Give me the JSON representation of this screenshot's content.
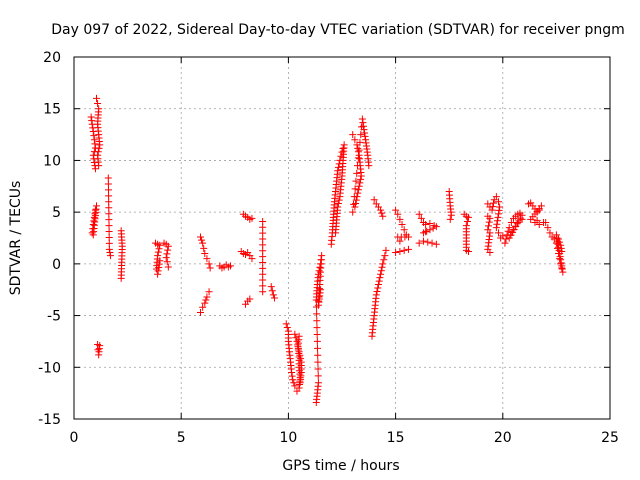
{
  "chart_data": {
    "type": "scatter",
    "title": "Day 097 of 2022, Sidereal Day-to-day VTEC variation (SDTVAR) for receiver pngm",
    "xlabel": "GPS time / hours",
    "ylabel": "SDTVAR / TECUs",
    "xlim": [
      0,
      25
    ],
    "ylim": [
      -15,
      20
    ],
    "xticks": [
      0,
      5,
      10,
      15,
      20,
      25
    ],
    "yticks": [
      -15,
      -10,
      -5,
      0,
      5,
      10,
      15,
      20
    ],
    "xtick_labels": [
      "0",
      "5",
      "10",
      "15",
      "20",
      "25"
    ],
    "ytick_labels": [
      "-15",
      "-10",
      "-5",
      "0",
      "5",
      "10",
      "15",
      "20"
    ],
    "grid": true,
    "marker": "+",
    "marker_color": "#ff0000",
    "series": [
      {
        "name": "SDTVAR",
        "segments": [
          [
            [
              0.8,
              14.2
            ],
            [
              0.85,
              13.5
            ],
            [
              0.9,
              12.8
            ],
            [
              0.95,
              12.0
            ],
            [
              1.0,
              11.2
            ],
            [
              0.9,
              10.5
            ],
            [
              0.95,
              9.8
            ],
            [
              1.0,
              9.2
            ]
          ],
          [
            [
              1.05,
              16.0
            ],
            [
              1.1,
              15.5
            ],
            [
              1.15,
              15.0
            ],
            [
              1.1,
              13.5
            ],
            [
              1.15,
              12.5
            ],
            [
              1.2,
              11.5
            ],
            [
              1.1,
              10.5
            ],
            [
              1.15,
              9.5
            ]
          ],
          [
            [
              0.85,
              3.0
            ],
            [
              0.9,
              3.8
            ],
            [
              0.95,
              4.5
            ],
            [
              1.0,
              5.2
            ],
            [
              1.05,
              5.6
            ],
            [
              0.9,
              2.8
            ]
          ],
          [
            [
              1.1,
              -7.8
            ],
            [
              1.12,
              -8.3
            ],
            [
              1.15,
              -8.8
            ],
            [
              1.2,
              -7.9
            ]
          ],
          [
            [
              1.6,
              8.3
            ],
            [
              1.65,
              1.4
            ],
            [
              1.7,
              0.8
            ]
          ],
          [
            [
              2.2,
              3.2
            ],
            [
              2.25,
              1.7
            ],
            [
              2.2,
              -1.4
            ]
          ],
          [
            [
              3.8,
              2.0
            ],
            [
              3.9,
              1.9
            ],
            [
              4.0,
              1.8
            ],
            [
              3.9,
              0.8
            ],
            [
              3.85,
              -0.5
            ],
            [
              3.9,
              -1.0
            ],
            [
              4.0,
              0.3
            ]
          ],
          [
            [
              4.2,
              2.0
            ],
            [
              4.3,
              1.9
            ],
            [
              4.4,
              1.7
            ],
            [
              4.3,
              0.6
            ],
            [
              4.35,
              0.2
            ],
            [
              4.4,
              -0.3
            ]
          ],
          [
            [
              5.9,
              2.6
            ],
            [
              6.0,
              2.0
            ],
            [
              6.05,
              1.5
            ],
            [
              6.1,
              1.0
            ],
            [
              6.2,
              0.5
            ],
            [
              6.3,
              0.0
            ],
            [
              6.35,
              -0.4
            ]
          ],
          [
            [
              5.9,
              -4.7
            ],
            [
              6.0,
              -4.2
            ],
            [
              6.1,
              -3.8
            ],
            [
              6.2,
              -3.2
            ],
            [
              6.3,
              -2.7
            ]
          ],
          [
            [
              6.8,
              -0.2
            ],
            [
              6.9,
              -0.4
            ],
            [
              7.0,
              -0.3
            ],
            [
              7.1,
              -0.1
            ],
            [
              7.2,
              -0.3
            ],
            [
              7.3,
              -0.2
            ]
          ],
          [
            [
              7.8,
              1.2
            ],
            [
              7.9,
              1.0
            ],
            [
              8.0,
              0.9
            ],
            [
              8.1,
              1.1
            ],
            [
              8.2,
              0.8
            ],
            [
              8.3,
              0.5
            ]
          ],
          [
            [
              7.9,
              4.8
            ],
            [
              8.0,
              4.6
            ],
            [
              8.1,
              4.5
            ],
            [
              8.2,
              4.3
            ],
            [
              8.3,
              4.4
            ]
          ],
          [
            [
              8.0,
              -3.9
            ],
            [
              8.1,
              -3.6
            ],
            [
              8.2,
              -3.4
            ]
          ],
          [
            [
              8.8,
              4.1
            ],
            [
              8.8,
              -2.7
            ]
          ],
          [
            [
              9.2,
              -2.2
            ],
            [
              9.25,
              -2.6
            ],
            [
              9.3,
              -3.0
            ],
            [
              9.35,
              -3.3
            ]
          ],
          [
            [
              9.9,
              -5.8
            ],
            [
              10.0,
              -6.5
            ],
            [
              10.0,
              -7.5
            ],
            [
              10.05,
              -8.5
            ],
            [
              10.1,
              -9.5
            ],
            [
              10.15,
              -10.5
            ],
            [
              10.2,
              -11.2
            ],
            [
              10.3,
              -11.8
            ],
            [
              10.4,
              -12.3
            ],
            [
              10.5,
              -12.0
            ],
            [
              10.55,
              -11.0
            ],
            [
              10.5,
              -10.0
            ],
            [
              10.5,
              -9.0
            ],
            [
              10.45,
              -8.0
            ],
            [
              10.5,
              -7.0
            ]
          ],
          [
            [
              10.3,
              -6.8
            ],
            [
              10.4,
              -7.5
            ],
            [
              10.5,
              -8.5
            ],
            [
              10.6,
              -9.5
            ],
            [
              10.6,
              -10.5
            ],
            [
              10.55,
              -11.5
            ]
          ],
          [
            [
              11.3,
              -13.4
            ],
            [
              11.35,
              -12.5
            ],
            [
              11.4,
              -11.5
            ],
            [
              11.3,
              -3.5
            ],
            [
              11.35,
              -2.0
            ],
            [
              11.4,
              -1.0
            ],
            [
              11.5,
              0.0
            ],
            [
              11.55,
              0.8
            ],
            [
              11.4,
              -4.0
            ],
            [
              11.5,
              -2.5
            ]
          ],
          [
            [
              12.0,
              1.9
            ],
            [
              12.05,
              3.0
            ],
            [
              12.1,
              4.5
            ],
            [
              12.15,
              6.0
            ],
            [
              12.2,
              7.0
            ],
            [
              12.25,
              8.0
            ],
            [
              12.3,
              9.0
            ],
            [
              12.4,
              10.0
            ],
            [
              12.5,
              10.8
            ],
            [
              12.6,
              11.5
            ],
            [
              12.5,
              8.5
            ],
            [
              12.4,
              6.5
            ],
            [
              12.3,
              5.5
            ],
            [
              12.2,
              3.0
            ]
          ],
          [
            [
              13.0,
              12.5
            ],
            [
              13.1,
              12.0
            ],
            [
              13.2,
              11.5
            ],
            [
              13.3,
              10.5
            ],
            [
              13.35,
              9.5
            ],
            [
              13.4,
              8.5
            ],
            [
              13.3,
              7.5
            ],
            [
              13.2,
              6.5
            ],
            [
              13.1,
              5.5
            ],
            [
              13.0,
              5.0
            ],
            [
              13.45,
              14.0
            ],
            [
              13.5,
              13.3
            ],
            [
              13.6,
              12.0
            ],
            [
              13.7,
              10.5
            ],
            [
              13.75,
              9.5
            ]
          ],
          [
            [
              14.0,
              6.2
            ],
            [
              14.1,
              5.8
            ],
            [
              14.2,
              5.5
            ],
            [
              14.3,
              5.2
            ],
            [
              14.4,
              4.6
            ]
          ],
          [
            [
              13.9,
              -7.0
            ],
            [
              13.95,
              -6.0
            ],
            [
              14.0,
              -5.0
            ],
            [
              14.05,
              -4.0
            ],
            [
              14.1,
              -3.0
            ],
            [
              14.2,
              -2.0
            ],
            [
              14.3,
              -1.0
            ],
            [
              14.4,
              0.0
            ],
            [
              14.5,
              0.8
            ],
            [
              14.55,
              1.3
            ]
          ],
          [
            [
              15.0,
              5.2
            ],
            [
              15.1,
              4.8
            ],
            [
              15.2,
              4.3
            ],
            [
              15.3,
              3.8
            ],
            [
              15.4,
              3.3
            ],
            [
              15.5,
              2.8
            ],
            [
              15.6,
              2.6
            ],
            [
              15.1,
              2.6
            ],
            [
              15.2,
              2.2
            ]
          ],
          [
            [
              15.0,
              1.1
            ],
            [
              15.2,
              1.2
            ],
            [
              15.4,
              1.3
            ],
            [
              15.6,
              1.4
            ]
          ],
          [
            [
              16.1,
              4.8
            ],
            [
              16.2,
              4.4
            ],
            [
              16.3,
              4.0
            ],
            [
              16.4,
              3.8
            ],
            [
              16.6,
              3.9
            ],
            [
              16.8,
              3.7
            ],
            [
              16.9,
              3.6
            ],
            [
              16.3,
              3.0
            ],
            [
              16.4,
              3.1
            ]
          ],
          [
            [
              16.1,
              2.0
            ],
            [
              16.3,
              2.2
            ],
            [
              16.5,
              2.1
            ],
            [
              16.7,
              2.0
            ],
            [
              16.9,
              1.9
            ]
          ],
          [
            [
              17.5,
              7.0
            ],
            [
              17.55,
              5.6
            ],
            [
              17.6,
              4.7
            ],
            [
              17.55,
              4.3
            ]
          ],
          [
            [
              18.2,
              4.8
            ],
            [
              18.3,
              4.6
            ],
            [
              18.4,
              4.5
            ],
            [
              18.3,
              3.7
            ],
            [
              18.3,
              1.3
            ],
            [
              18.4,
              1.2
            ]
          ],
          [
            [
              19.3,
              4.6
            ],
            [
              19.4,
              4.4
            ],
            [
              19.3,
              3.3
            ],
            [
              19.4,
              3.0
            ],
            [
              19.3,
              1.4
            ],
            [
              19.4,
              1.1
            ]
          ],
          [
            [
              19.3,
              5.8
            ],
            [
              19.4,
              5.5
            ],
            [
              19.5,
              5.2
            ],
            [
              19.6,
              6.2
            ],
            [
              19.7,
              6.5
            ],
            [
              19.8,
              6.0
            ],
            [
              19.85,
              5.5
            ],
            [
              19.7,
              3.5
            ],
            [
              19.8,
              3.0
            ],
            [
              19.9,
              2.5
            ],
            [
              20.0,
              2.7
            ]
          ],
          [
            [
              20.1,
              2.0
            ],
            [
              20.2,
              2.8
            ],
            [
              20.3,
              3.5
            ],
            [
              20.4,
              4.0
            ],
            [
              20.5,
              4.4
            ],
            [
              20.6,
              4.6
            ],
            [
              20.7,
              4.8
            ],
            [
              20.8,
              4.9
            ],
            [
              20.9,
              4.7
            ],
            [
              20.3,
              2.5
            ],
            [
              20.5,
              3.3
            ],
            [
              20.7,
              4.0
            ],
            [
              20.9,
              4.3
            ]
          ],
          [
            [
              21.2,
              5.8
            ],
            [
              21.3,
              5.9
            ],
            [
              21.4,
              5.6
            ],
            [
              21.5,
              5.3
            ],
            [
              21.6,
              5.0
            ],
            [
              21.7,
              5.2
            ],
            [
              21.8,
              5.6
            ],
            [
              21.3,
              4.3
            ],
            [
              21.5,
              4.0
            ],
            [
              21.6,
              4.2
            ],
            [
              21.7,
              3.8
            ],
            [
              21.9,
              4.0
            ]
          ],
          [
            [
              22.0,
              4.0
            ],
            [
              22.1,
              3.5
            ],
            [
              22.2,
              3.0
            ],
            [
              22.3,
              2.6
            ],
            [
              22.4,
              2.4
            ],
            [
              22.5,
              2.0
            ],
            [
              22.55,
              1.5
            ],
            [
              22.6,
              1.0
            ],
            [
              22.65,
              0.5
            ],
            [
              22.7,
              0.0
            ],
            [
              22.75,
              -0.4
            ],
            [
              22.8,
              -0.8
            ],
            [
              22.5,
              2.8
            ],
            [
              22.6,
              2.4
            ],
            [
              22.7,
              1.8
            ],
            [
              22.75,
              1.2
            ]
          ]
        ]
      }
    ]
  }
}
